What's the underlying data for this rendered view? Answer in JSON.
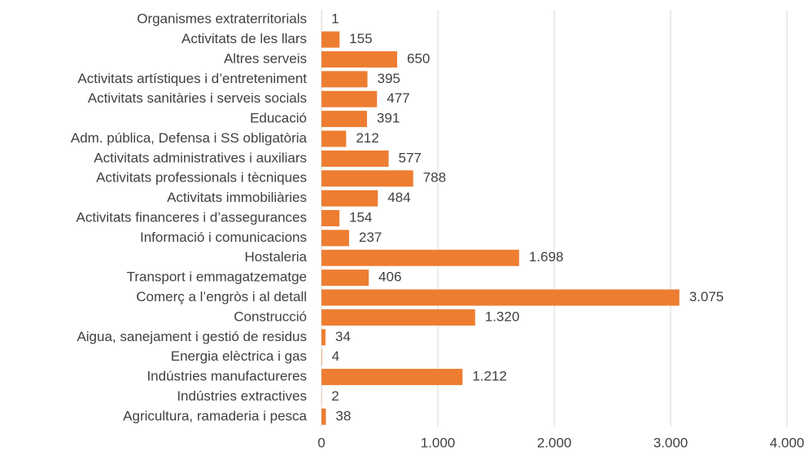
{
  "chart_data": {
    "type": "bar",
    "orientation": "horizontal",
    "categories": [
      "Organismes extraterritorials",
      "Activitats de les llars",
      "Altres serveis",
      "Activitats artístiques i d’entreteniment",
      "Activitats sanitàries i serveis socials",
      "Educació",
      "Adm. pública, Defensa i SS obligatòria",
      "Activitats administratives i auxiliars",
      "Activitats professionals i tècniques",
      "Activitats immobiliàries",
      "Activitats financeres i d’assegurances",
      "Informació i comunicacions",
      "Hostaleria",
      "Transport i emmagatzematge",
      "Comerç a l’engròs i al detall",
      "Construcció",
      "Aigua, sanejament i gestió de residus",
      "Energia elèctrica i gas",
      "Indústries manufactureres",
      "Indústries extractives",
      "Agricultura, ramaderia i pesca"
    ],
    "values": [
      1,
      155,
      650,
      395,
      477,
      391,
      212,
      577,
      788,
      484,
      154,
      237,
      1698,
      406,
      3075,
      1320,
      34,
      4,
      1212,
      2,
      38
    ],
    "value_labels": [
      "1",
      "155",
      "650",
      "395",
      "477",
      "391",
      "212",
      "577",
      "788",
      "484",
      "154",
      "237",
      "1.698",
      "406",
      "3.075",
      "1.320",
      "34",
      "4",
      "1.212",
      "2",
      "38"
    ],
    "color": "#ed7d31",
    "xlim": [
      0,
      4000
    ],
    "xticks": [
      0,
      {
        "value": 1000,
        "label": "1.000"
      },
      {
        "value": 2000,
        "label": "2.000"
      },
      {
        "value": 3000,
        "label": "3.000"
      },
      {
        "value": 4000,
        "label": "4.000"
      }
    ],
    "grid": true
  }
}
